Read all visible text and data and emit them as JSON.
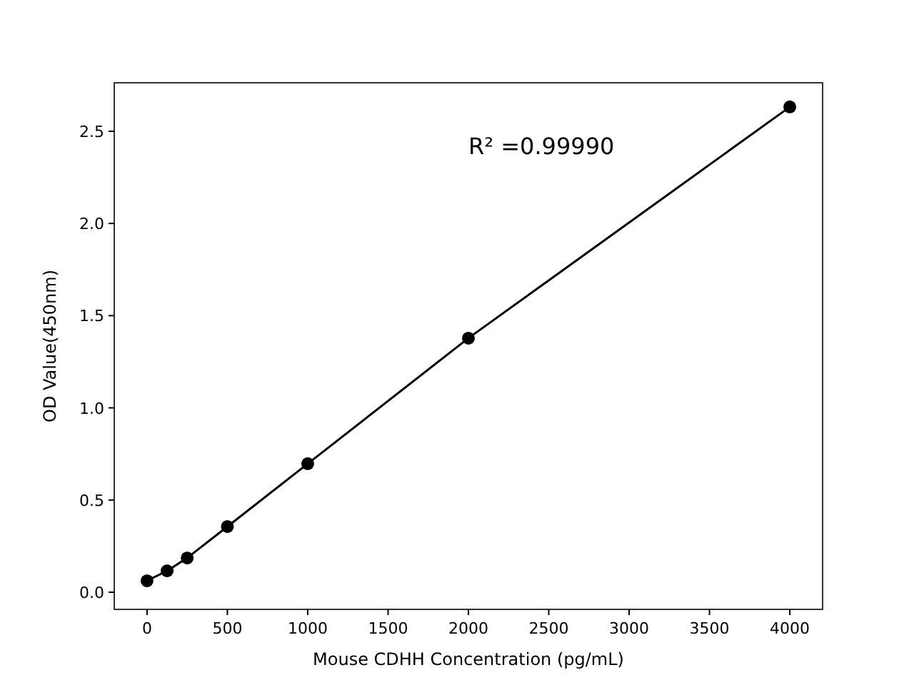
{
  "chart_data": {
    "type": "line",
    "xlabel": "Mouse CDHH Concentration (pg/mL)",
    "ylabel": "OD Value(450nm)",
    "annotations": [
      "R² =0.99990"
    ],
    "x": [
      0,
      125,
      250,
      500,
      1000,
      2000,
      4000
    ],
    "series": [
      {
        "color": "#000000",
        "values": [
          0.062,
          0.116,
          0.186,
          0.356,
          0.697,
          1.378,
          2.632
        ]
      }
    ],
    "xlim": [
      -204,
      4204
    ],
    "ylim": [
      -0.093,
      2.763
    ],
    "xticks": [
      0,
      500,
      1000,
      1500,
      2000,
      2500,
      3000,
      3500,
      4000
    ],
    "yticks": [
      {
        "value": 0,
        "label": "0.0"
      },
      {
        "value": 0.5,
        "label": "0.5"
      },
      {
        "value": 1,
        "label": "1.0"
      },
      {
        "value": 1.5,
        "label": "1.5"
      },
      {
        "value": 2,
        "label": "2.0"
      },
      {
        "value": 2.5,
        "label": "2.5"
      }
    ],
    "marker": "circle",
    "line_style": "solid",
    "grid": false
  }
}
